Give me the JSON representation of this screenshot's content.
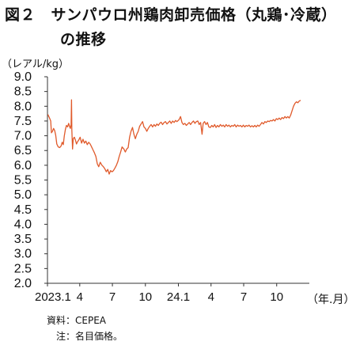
{
  "title": {
    "line1": "図２　サンパウロ州鶏肉卸売価格（丸鶏･冷蔵）",
    "line2": "の推移"
  },
  "footer": {
    "source": "資料：CEPEA",
    "note": "注：名目価格。"
  },
  "chart_data": {
    "type": "line",
    "title": "図２　サンパウロ州鶏肉卸売価格（丸鶏･冷蔵）の推移",
    "ylabel": "（レアル/kg）",
    "xlabel": "（年.月）",
    "ylim": [
      2.0,
      9.0
    ],
    "yticks": [
      "9.0",
      "8.5",
      "8.0",
      "7.5",
      "7.0",
      "6.5",
      "6.0",
      "5.5",
      "5.0",
      "4.5",
      "4.0",
      "3.5",
      "3.0",
      "2.5",
      "2.0"
    ],
    "xlim": [
      "2023-01",
      "2024-12"
    ],
    "xticks": [
      {
        "label": "2023.1",
        "date": "2023-01"
      },
      {
        "label": "4",
        "date": "2023-04"
      },
      {
        "label": "7",
        "date": "2023-07"
      },
      {
        "label": "10",
        "date": "2023-10"
      },
      {
        "label": "24.1",
        "date": "2024-01"
      },
      {
        "label": "4",
        "date": "2024-04"
      },
      {
        "label": "7",
        "date": "2024-07"
      },
      {
        "label": "10",
        "date": "2024-10"
      }
    ],
    "grid": false,
    "line_color": "#e05a2b",
    "series": [
      {
        "points": [
          [
            "2023-01-02",
            7.72
          ],
          [
            "2023-01-06",
            7.62
          ],
          [
            "2023-01-10",
            7.5
          ],
          [
            "2023-01-12",
            7.1
          ],
          [
            "2023-01-15",
            7.15
          ],
          [
            "2023-01-18",
            7.25
          ],
          [
            "2023-01-21",
            7.18
          ],
          [
            "2023-01-24",
            7.02
          ],
          [
            "2023-01-27",
            6.72
          ],
          [
            "2023-01-31",
            6.62
          ],
          [
            "2023-02-04",
            6.6
          ],
          [
            "2023-02-08",
            6.65
          ],
          [
            "2023-02-11",
            6.78
          ],
          [
            "2023-02-14",
            6.7
          ],
          [
            "2023-02-17",
            7.0
          ],
          [
            "2023-02-20",
            7.22
          ],
          [
            "2023-02-23",
            7.35
          ],
          [
            "2023-02-26",
            7.3
          ],
          [
            "2023-03-01",
            7.42
          ],
          [
            "2023-03-04",
            7.3
          ],
          [
            "2023-03-06",
            7.25
          ],
          [
            "2023-03-08",
            7.38
          ],
          [
            "2023-03-09",
            8.22
          ],
          [
            "2023-03-10",
            7.2
          ],
          [
            "2023-03-12",
            6.55
          ],
          [
            "2023-03-14",
            6.9
          ],
          [
            "2023-03-17",
            6.95
          ],
          [
            "2023-03-20",
            6.85
          ],
          [
            "2023-03-23",
            6.72
          ],
          [
            "2023-03-26",
            6.8
          ],
          [
            "2023-03-29",
            6.85
          ],
          [
            "2023-04-02",
            6.95
          ],
          [
            "2023-04-06",
            6.75
          ],
          [
            "2023-04-10",
            6.88
          ],
          [
            "2023-04-14",
            6.75
          ],
          [
            "2023-04-18",
            6.82
          ],
          [
            "2023-04-22",
            6.7
          ],
          [
            "2023-04-26",
            6.78
          ],
          [
            "2023-04-30",
            6.72
          ],
          [
            "2023-05-04",
            6.62
          ],
          [
            "2023-05-08",
            6.52
          ],
          [
            "2023-05-12",
            6.42
          ],
          [
            "2023-05-16",
            6.3
          ],
          [
            "2023-05-20",
            6.05
          ],
          [
            "2023-05-24",
            5.95
          ],
          [
            "2023-05-28",
            6.1
          ],
          [
            "2023-06-02",
            6.0
          ],
          [
            "2023-06-06",
            5.95
          ],
          [
            "2023-06-10",
            5.88
          ],
          [
            "2023-06-14",
            5.78
          ],
          [
            "2023-06-18",
            5.86
          ],
          [
            "2023-06-22",
            5.7
          ],
          [
            "2023-06-26",
            5.82
          ],
          [
            "2023-06-30",
            5.78
          ],
          [
            "2023-07-04",
            5.82
          ],
          [
            "2023-07-08",
            5.9
          ],
          [
            "2023-07-12",
            6.0
          ],
          [
            "2023-07-16",
            6.12
          ],
          [
            "2023-07-20",
            6.3
          ],
          [
            "2023-07-24",
            6.45
          ],
          [
            "2023-07-28",
            6.62
          ],
          [
            "2023-08-02",
            6.55
          ],
          [
            "2023-08-06",
            6.45
          ],
          [
            "2023-08-10",
            6.55
          ],
          [
            "2023-08-14",
            6.6
          ],
          [
            "2023-08-18",
            6.95
          ],
          [
            "2023-08-22",
            7.15
          ],
          [
            "2023-08-26",
            7.28
          ],
          [
            "2023-08-30",
            7.05
          ],
          [
            "2023-09-03",
            6.9
          ],
          [
            "2023-09-07",
            7.05
          ],
          [
            "2023-09-11",
            7.15
          ],
          [
            "2023-09-15",
            7.32
          ],
          [
            "2023-09-19",
            7.4
          ],
          [
            "2023-09-23",
            7.48
          ],
          [
            "2023-09-27",
            7.3
          ],
          [
            "2023-10-01",
            7.25
          ],
          [
            "2023-10-05",
            7.15
          ],
          [
            "2023-10-09",
            7.25
          ],
          [
            "2023-10-13",
            7.32
          ],
          [
            "2023-10-17",
            7.38
          ],
          [
            "2023-10-21",
            7.3
          ],
          [
            "2023-10-25",
            7.38
          ],
          [
            "2023-10-29",
            7.32
          ],
          [
            "2023-11-02",
            7.4
          ],
          [
            "2023-11-06",
            7.35
          ],
          [
            "2023-11-10",
            7.42
          ],
          [
            "2023-11-14",
            7.46
          ],
          [
            "2023-11-18",
            7.38
          ],
          [
            "2023-11-22",
            7.45
          ],
          [
            "2023-11-26",
            7.48
          ],
          [
            "2023-11-30",
            7.4
          ],
          [
            "2023-12-04",
            7.45
          ],
          [
            "2023-12-08",
            7.5
          ],
          [
            "2023-12-12",
            7.42
          ],
          [
            "2023-12-16",
            7.5
          ],
          [
            "2023-12-20",
            7.45
          ],
          [
            "2023-12-24",
            7.52
          ],
          [
            "2023-12-28",
            7.48
          ],
          [
            "2024-01-03",
            7.55
          ],
          [
            "2024-01-07",
            7.65
          ],
          [
            "2024-01-11",
            7.45
          ],
          [
            "2024-01-15",
            7.38
          ],
          [
            "2024-01-19",
            7.42
          ],
          [
            "2024-01-23",
            7.35
          ],
          [
            "2024-01-27",
            7.4
          ],
          [
            "2024-01-31",
            7.45
          ],
          [
            "2024-02-04",
            7.38
          ],
          [
            "2024-02-08",
            7.45
          ],
          [
            "2024-02-12",
            7.5
          ],
          [
            "2024-02-16",
            7.42
          ],
          [
            "2024-02-20",
            7.48
          ],
          [
            "2024-02-24",
            7.5
          ],
          [
            "2024-02-28",
            7.38
          ],
          [
            "2024-03-03",
            7.45
          ],
          [
            "2024-03-07",
            7.05
          ],
          [
            "2024-03-10",
            7.42
          ],
          [
            "2024-03-14",
            7.48
          ],
          [
            "2024-03-18",
            7.38
          ],
          [
            "2024-03-22",
            7.45
          ],
          [
            "2024-03-26",
            7.3
          ],
          [
            "2024-03-30",
            7.28
          ],
          [
            "2024-04-03",
            7.35
          ],
          [
            "2024-04-07",
            7.3
          ],
          [
            "2024-04-11",
            7.38
          ],
          [
            "2024-04-15",
            7.28
          ],
          [
            "2024-04-19",
            7.35
          ],
          [
            "2024-04-23",
            7.3
          ],
          [
            "2024-04-27",
            7.38
          ],
          [
            "2024-05-01",
            7.32
          ],
          [
            "2024-05-05",
            7.36
          ],
          [
            "2024-05-09",
            7.3
          ],
          [
            "2024-05-13",
            7.38
          ],
          [
            "2024-05-17",
            7.32
          ],
          [
            "2024-05-21",
            7.36
          ],
          [
            "2024-05-25",
            7.3
          ],
          [
            "2024-05-29",
            7.35
          ],
          [
            "2024-06-02",
            7.32
          ],
          [
            "2024-06-06",
            7.38
          ],
          [
            "2024-06-10",
            7.3
          ],
          [
            "2024-06-14",
            7.36
          ],
          [
            "2024-06-18",
            7.32
          ],
          [
            "2024-06-22",
            7.35
          ],
          [
            "2024-06-26",
            7.3
          ],
          [
            "2024-06-30",
            7.36
          ],
          [
            "2024-07-04",
            7.3
          ],
          [
            "2024-07-08",
            7.35
          ],
          [
            "2024-07-12",
            7.32
          ],
          [
            "2024-07-16",
            7.36
          ],
          [
            "2024-07-20",
            7.3
          ],
          [
            "2024-07-24",
            7.34
          ],
          [
            "2024-07-28",
            7.3
          ],
          [
            "2024-08-01",
            7.35
          ],
          [
            "2024-08-05",
            7.3
          ],
          [
            "2024-08-09",
            7.36
          ],
          [
            "2024-08-13",
            7.32
          ],
          [
            "2024-08-17",
            7.38
          ],
          [
            "2024-08-21",
            7.45
          ],
          [
            "2024-08-25",
            7.4
          ],
          [
            "2024-08-29",
            7.48
          ],
          [
            "2024-09-02",
            7.45
          ],
          [
            "2024-09-06",
            7.5
          ],
          [
            "2024-09-10",
            7.48
          ],
          [
            "2024-09-14",
            7.52
          ],
          [
            "2024-09-18",
            7.5
          ],
          [
            "2024-09-22",
            7.55
          ],
          [
            "2024-09-26",
            7.5
          ],
          [
            "2024-09-30",
            7.58
          ],
          [
            "2024-10-04",
            7.55
          ],
          [
            "2024-10-08",
            7.6
          ],
          [
            "2024-10-12",
            7.55
          ],
          [
            "2024-10-16",
            7.62
          ],
          [
            "2024-10-20",
            7.58
          ],
          [
            "2024-10-24",
            7.65
          ],
          [
            "2024-10-28",
            7.6
          ],
          [
            "2024-11-01",
            7.65
          ],
          [
            "2024-11-05",
            7.6
          ],
          [
            "2024-11-09",
            7.7
          ],
          [
            "2024-11-13",
            7.85
          ],
          [
            "2024-11-17",
            8.0
          ],
          [
            "2024-11-21",
            8.1
          ],
          [
            "2024-11-25",
            8.15
          ],
          [
            "2024-11-29",
            8.12
          ],
          [
            "2024-12-03",
            8.18
          ],
          [
            "2024-12-07",
            8.2
          ]
        ]
      }
    ]
  }
}
